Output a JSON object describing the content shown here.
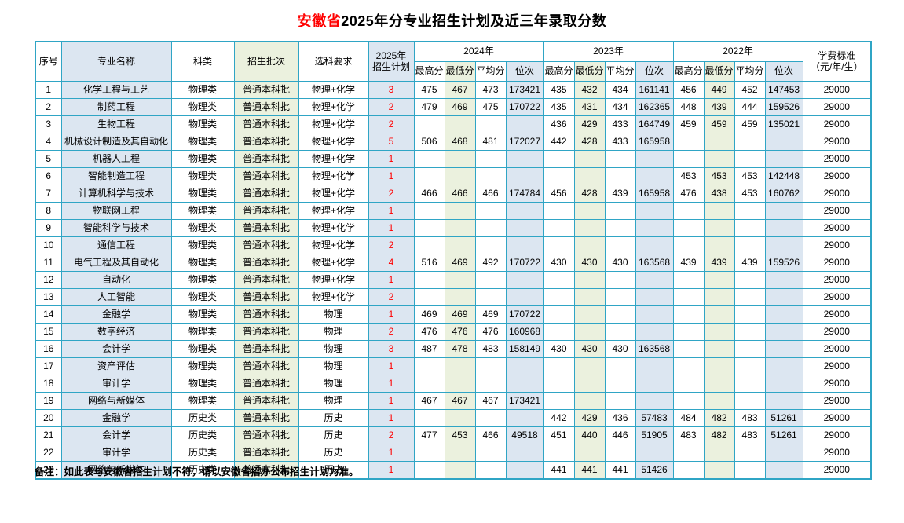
{
  "page": {
    "title_highlight": "安徽省",
    "title_rest": "2025年分专业招生计划及近三年录取分数",
    "note": "备注：如此表与安徽省招生计划不符，请以安徽省招办公布招生计划为准。"
  },
  "colors": {
    "border": "#2fa5c5",
    "light_blue": "#dce6f1",
    "light_green": "#ebf1de",
    "accent_red": "#ff0000"
  },
  "table": {
    "header": {
      "seq": "序号",
      "major": "专业名称",
      "category": "科类",
      "batch": "招生批次",
      "subject_req": "选科要求",
      "plan_line1": "2025年",
      "plan_line2": "招生计划",
      "years": [
        "2024年",
        "2023年",
        "2022年"
      ],
      "sub": [
        "最高分",
        "最低分",
        "平均分",
        "位次"
      ],
      "tuition_line1": "学费标准",
      "tuition_line2": "（元/年/生）"
    },
    "rows": [
      {
        "seq": "1",
        "major": "化学工程与工艺",
        "category": "物理类",
        "batch": "普通本科批",
        "req": "物理+化学",
        "plan": "3",
        "y2024": [
          "475",
          "467",
          "473",
          "173421"
        ],
        "y2023": [
          "435",
          "432",
          "434",
          "161141"
        ],
        "y2022": [
          "456",
          "449",
          "452",
          "147453"
        ],
        "tuition": "29000"
      },
      {
        "seq": "2",
        "major": "制药工程",
        "category": "物理类",
        "batch": "普通本科批",
        "req": "物理+化学",
        "plan": "2",
        "y2024": [
          "479",
          "469",
          "475",
          "170722"
        ],
        "y2023": [
          "435",
          "431",
          "434",
          "162365"
        ],
        "y2022": [
          "448",
          "439",
          "444",
          "159526"
        ],
        "tuition": "29000"
      },
      {
        "seq": "3",
        "major": "生物工程",
        "category": "物理类",
        "batch": "普通本科批",
        "req": "物理+化学",
        "plan": "2",
        "y2024": [
          "",
          "",
          "",
          ""
        ],
        "y2023": [
          "436",
          "429",
          "433",
          "164749"
        ],
        "y2022": [
          "459",
          "459",
          "459",
          "135021"
        ],
        "tuition": "29000"
      },
      {
        "seq": "4",
        "major": "机械设计制造及其自动化",
        "category": "物理类",
        "batch": "普通本科批",
        "req": "物理+化学",
        "plan": "5",
        "y2024": [
          "506",
          "468",
          "481",
          "172027"
        ],
        "y2023": [
          "442",
          "428",
          "433",
          "165958"
        ],
        "y2022": [
          "",
          "",
          "",
          ""
        ],
        "tuition": "29000"
      },
      {
        "seq": "5",
        "major": "机器人工程",
        "category": "物理类",
        "batch": "普通本科批",
        "req": "物理+化学",
        "plan": "1",
        "y2024": [
          "",
          "",
          "",
          ""
        ],
        "y2023": [
          "",
          "",
          "",
          ""
        ],
        "y2022": [
          "",
          "",
          "",
          ""
        ],
        "tuition": "29000"
      },
      {
        "seq": "6",
        "major": "智能制造工程",
        "category": "物理类",
        "batch": "普通本科批",
        "req": "物理+化学",
        "plan": "1",
        "y2024": [
          "",
          "",
          "",
          ""
        ],
        "y2023": [
          "",
          "",
          "",
          ""
        ],
        "y2022": [
          "453",
          "453",
          "453",
          "142448"
        ],
        "tuition": "29000"
      },
      {
        "seq": "7",
        "major": "计算机科学与技术",
        "category": "物理类",
        "batch": "普通本科批",
        "req": "物理+化学",
        "plan": "2",
        "y2024": [
          "466",
          "466",
          "466",
          "174784"
        ],
        "y2023": [
          "456",
          "428",
          "439",
          "165958"
        ],
        "y2022": [
          "476",
          "438",
          "453",
          "160762"
        ],
        "tuition": "29000"
      },
      {
        "seq": "8",
        "major": "物联网工程",
        "category": "物理类",
        "batch": "普通本科批",
        "req": "物理+化学",
        "plan": "1",
        "y2024": [
          "",
          "",
          "",
          ""
        ],
        "y2023": [
          "",
          "",
          "",
          ""
        ],
        "y2022": [
          "",
          "",
          "",
          ""
        ],
        "tuition": "29000"
      },
      {
        "seq": "9",
        "major": "智能科学与技术",
        "category": "物理类",
        "batch": "普通本科批",
        "req": "物理+化学",
        "plan": "1",
        "y2024": [
          "",
          "",
          "",
          ""
        ],
        "y2023": [
          "",
          "",
          "",
          ""
        ],
        "y2022": [
          "",
          "",
          "",
          ""
        ],
        "tuition": "29000"
      },
      {
        "seq": "10",
        "major": "通信工程",
        "category": "物理类",
        "batch": "普通本科批",
        "req": "物理+化学",
        "plan": "2",
        "y2024": [
          "",
          "",
          "",
          ""
        ],
        "y2023": [
          "",
          "",
          "",
          ""
        ],
        "y2022": [
          "",
          "",
          "",
          ""
        ],
        "tuition": "29000"
      },
      {
        "seq": "11",
        "major": "电气工程及其自动化",
        "category": "物理类",
        "batch": "普通本科批",
        "req": "物理+化学",
        "plan": "4",
        "y2024": [
          "516",
          "469",
          "492",
          "170722"
        ],
        "y2023": [
          "430",
          "430",
          "430",
          "163568"
        ],
        "y2022": [
          "439",
          "439",
          "439",
          "159526"
        ],
        "tuition": "29000"
      },
      {
        "seq": "12",
        "major": "自动化",
        "category": "物理类",
        "batch": "普通本科批",
        "req": "物理+化学",
        "plan": "1",
        "y2024": [
          "",
          "",
          "",
          ""
        ],
        "y2023": [
          "",
          "",
          "",
          ""
        ],
        "y2022": [
          "",
          "",
          "",
          ""
        ],
        "tuition": "29000"
      },
      {
        "seq": "13",
        "major": "人工智能",
        "category": "物理类",
        "batch": "普通本科批",
        "req": "物理+化学",
        "plan": "2",
        "y2024": [
          "",
          "",
          "",
          ""
        ],
        "y2023": [
          "",
          "",
          "",
          ""
        ],
        "y2022": [
          "",
          "",
          "",
          ""
        ],
        "tuition": "29000"
      },
      {
        "seq": "14",
        "major": "金融学",
        "category": "物理类",
        "batch": "普通本科批",
        "req": "物理",
        "plan": "1",
        "y2024": [
          "469",
          "469",
          "469",
          "170722"
        ],
        "y2023": [
          "",
          "",
          "",
          ""
        ],
        "y2022": [
          "",
          "",
          "",
          ""
        ],
        "tuition": "29000"
      },
      {
        "seq": "15",
        "major": "数字经济",
        "category": "物理类",
        "batch": "普通本科批",
        "req": "物理",
        "plan": "2",
        "y2024": [
          "476",
          "476",
          "476",
          "160968"
        ],
        "y2023": [
          "",
          "",
          "",
          ""
        ],
        "y2022": [
          "",
          "",
          "",
          ""
        ],
        "tuition": "29000"
      },
      {
        "seq": "16",
        "major": "会计学",
        "category": "物理类",
        "batch": "普通本科批",
        "req": "物理",
        "plan": "3",
        "y2024": [
          "487",
          "478",
          "483",
          "158149"
        ],
        "y2023": [
          "430",
          "430",
          "430",
          "163568"
        ],
        "y2022": [
          "",
          "",
          "",
          ""
        ],
        "tuition": "29000"
      },
      {
        "seq": "17",
        "major": "资产评估",
        "category": "物理类",
        "batch": "普通本科批",
        "req": "物理",
        "plan": "1",
        "y2024": [
          "",
          "",
          "",
          ""
        ],
        "y2023": [
          "",
          "",
          "",
          ""
        ],
        "y2022": [
          "",
          "",
          "",
          ""
        ],
        "tuition": "29000"
      },
      {
        "seq": "18",
        "major": "审计学",
        "category": "物理类",
        "batch": "普通本科批",
        "req": "物理",
        "plan": "1",
        "y2024": [
          "",
          "",
          "",
          ""
        ],
        "y2023": [
          "",
          "",
          "",
          ""
        ],
        "y2022": [
          "",
          "",
          "",
          ""
        ],
        "tuition": "29000"
      },
      {
        "seq": "19",
        "major": "网络与新媒体",
        "category": "物理类",
        "batch": "普通本科批",
        "req": "物理",
        "plan": "1",
        "y2024": [
          "467",
          "467",
          "467",
          "173421"
        ],
        "y2023": [
          "",
          "",
          "",
          ""
        ],
        "y2022": [
          "",
          "",
          "",
          ""
        ],
        "tuition": "29000"
      },
      {
        "seq": "20",
        "major": "金融学",
        "category": "历史类",
        "batch": "普通本科批",
        "req": "历史",
        "plan": "1",
        "y2024": [
          "",
          "",
          "",
          ""
        ],
        "y2023": [
          "442",
          "429",
          "436",
          "57483"
        ],
        "y2022": [
          "484",
          "482",
          "483",
          "51261"
        ],
        "tuition": "29000"
      },
      {
        "seq": "21",
        "major": "会计学",
        "category": "历史类",
        "batch": "普通本科批",
        "req": "历史",
        "plan": "2",
        "y2024": [
          "477",
          "453",
          "466",
          "49518"
        ],
        "y2023": [
          "451",
          "440",
          "446",
          "51905"
        ],
        "y2022": [
          "483",
          "482",
          "483",
          "51261"
        ],
        "tuition": "29000"
      },
      {
        "seq": "22",
        "major": "审计学",
        "category": "历史类",
        "batch": "普通本科批",
        "req": "历史",
        "plan": "1",
        "y2024": [
          "",
          "",
          "",
          ""
        ],
        "y2023": [
          "",
          "",
          "",
          ""
        ],
        "y2022": [
          "",
          "",
          "",
          ""
        ],
        "tuition": "29000"
      },
      {
        "seq": "23",
        "major": "网络与新媒体",
        "category": "历史类",
        "batch": "普通本科批",
        "req": "历史",
        "plan": "1",
        "y2024": [
          "",
          "",
          "",
          ""
        ],
        "y2023": [
          "441",
          "441",
          "441",
          "51426"
        ],
        "y2022": [
          "",
          "",
          "",
          ""
        ],
        "tuition": "29000"
      }
    ]
  }
}
